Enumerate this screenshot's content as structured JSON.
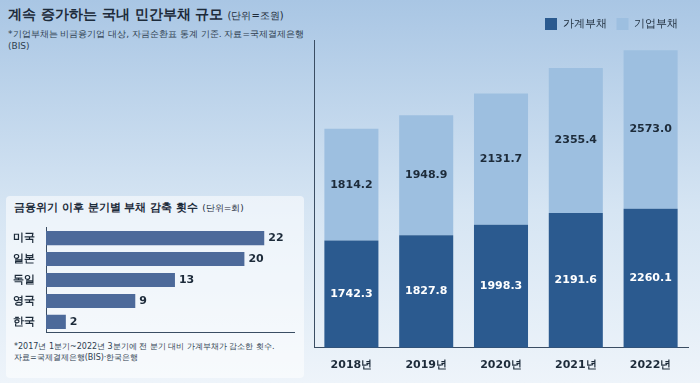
{
  "chart_data": [
    {
      "type": "bar",
      "title": "계속 증가하는 국내 민간부채 규모",
      "subtitle": "(단위=조원)",
      "notes": [
        "*기업부채는 비금융기업 대상, 자금순환표 통계 기준. 자료=국제결제은행(BIS)"
      ],
      "categories": [
        "2018년",
        "2019년",
        "2020년",
        "2021년",
        "2022년"
      ],
      "series": [
        {
          "name": "가계부채",
          "color": "#2b5a8f",
          "values": [
            1742.3,
            1827.8,
            1998.3,
            2191.6,
            2260.1
          ]
        },
        {
          "name": "기업부채",
          "color": "#9dbfe0",
          "values": [
            1814.2,
            1948.9,
            2131.7,
            2355.4,
            2573.0
          ],
          "value_labels": [
            "1814.2",
            "1948.9",
            "2131.7",
            "2355.4",
            "2573.0"
          ]
        }
      ],
      "stacked": true,
      "data_labels": true,
      "legend": "top",
      "ylim": [
        0,
        5000
      ],
      "tick_labels": "x",
      "grid": false
    },
    {
      "type": "bar",
      "title": "금융위기 이후 분기별 부채 감축 횟수",
      "subtitle": "(단위=회)",
      "notes": [
        "*2017년 1분기~2022년 3분기에 전 분기 대비 가계부채가 감소한 횟수.",
        "자료=국제결제은행(BIS)·한국은행"
      ],
      "categories": [
        "미국",
        "일본",
        "독일",
        "영국",
        "한국"
      ],
      "values": [
        22,
        20,
        13,
        9,
        2
      ],
      "color": "#4d6a9a",
      "orientation": "horizontal",
      "data_labels": true,
      "xlim": [
        0,
        25
      ],
      "tick_labels": "y",
      "grid": false
    }
  ]
}
